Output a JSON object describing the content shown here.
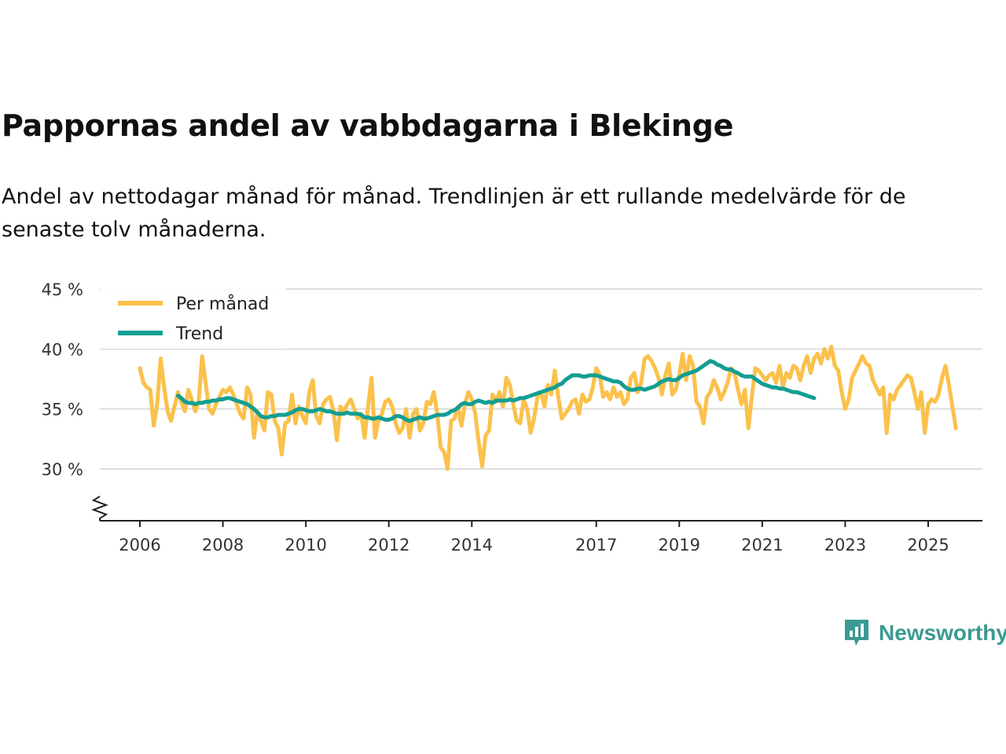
{
  "title": "Pappornas andel av vabbdagarna i Blekinge",
  "subtitle": "Andel av nettodagar månad för månad. Trendlinjen är ett rullande medelvärde för de senaste tolv månaderna.",
  "brand": {
    "name": "Newsworthy",
    "color": "#3a9a92"
  },
  "colors": {
    "monthly": "#fbc14b",
    "trend": "#139e93",
    "grid": "#dddddd",
    "axis": "#222222"
  },
  "chart_data": {
    "type": "line",
    "ylim": [
      25,
      45
    ],
    "y_ticks": [
      30,
      35,
      40,
      45
    ],
    "y_tick_labels": [
      "30 %",
      "35 %",
      "40 %",
      "45 %"
    ],
    "x_range": [
      2005.7,
      2026.3
    ],
    "x_ticks": [
      2006,
      2008,
      2010,
      2012,
      2014,
      2017,
      2019,
      2021,
      2023,
      2025
    ],
    "x_tick_labels": [
      "2006",
      "2008",
      "2010",
      "2012",
      "2014",
      "2017",
      "2019",
      "2021",
      "2023",
      "2025"
    ],
    "legend": {
      "position": "top-left",
      "entries": [
        "Per månad",
        "Trend"
      ]
    },
    "series": [
      {
        "name": "Per månad",
        "start": 2006.0,
        "step": 0.08333,
        "values": [
          38.4,
          37.2,
          36.8,
          36.6,
          33.6,
          35.4,
          39.2,
          36.8,
          34.8,
          34.0,
          35.2,
          36.4,
          35.6,
          34.8,
          36.6,
          35.8,
          34.8,
          35.6,
          39.4,
          37.2,
          35.0,
          34.6,
          35.4,
          36.0,
          36.6,
          36.4,
          36.8,
          36.2,
          35.4,
          34.6,
          34.2,
          36.8,
          36.2,
          32.6,
          34.8,
          34.0,
          33.2,
          36.4,
          36.2,
          34.0,
          33.4,
          31.2,
          33.8,
          34.0,
          36.2,
          33.8,
          35.2,
          34.4,
          33.8,
          36.4,
          37.4,
          34.4,
          33.8,
          35.4,
          35.8,
          36.0,
          34.8,
          32.4,
          35.2,
          34.8,
          35.4,
          35.8,
          35.0,
          34.2,
          34.6,
          32.6,
          35.2,
          37.6,
          32.6,
          34.0,
          34.6,
          35.6,
          35.8,
          35.2,
          33.8,
          33.0,
          33.4,
          35.0,
          32.6,
          34.6,
          35.0,
          33.2,
          33.8,
          35.6,
          35.4,
          36.4,
          34.6,
          31.8,
          31.4,
          30.0,
          34.0,
          34.2,
          35.2,
          33.6,
          35.4,
          36.4,
          35.8,
          34.6,
          32.2,
          30.2,
          32.8,
          33.2,
          36.2,
          35.6,
          36.4,
          35.2,
          37.6,
          37.0,
          35.4,
          34.0,
          33.8,
          35.8,
          35.0,
          33.0,
          34.2,
          36.0,
          36.4,
          35.2,
          37.0,
          36.2,
          38.2,
          36.0,
          34.2,
          34.6,
          35.0,
          35.6,
          35.8,
          34.6,
          36.2,
          35.6,
          35.8,
          36.8,
          38.4,
          37.8,
          36.0,
          36.4,
          35.8,
          36.8,
          36.0,
          36.4,
          35.4,
          35.8,
          37.6,
          38.0,
          36.4,
          37.2,
          39.2,
          39.4,
          39.0,
          38.4,
          37.6,
          36.2,
          37.8,
          38.8,
          36.2,
          36.6,
          37.8,
          39.6,
          37.4,
          39.4,
          38.6,
          35.6,
          35.2,
          33.8,
          36.0,
          36.4,
          37.4,
          36.8,
          35.8,
          36.4,
          37.2,
          38.4,
          38.0,
          36.6,
          35.4,
          36.6,
          33.4,
          36.0,
          38.4,
          38.2,
          37.8,
          37.4,
          37.8,
          38.0,
          37.2,
          38.6,
          36.8,
          38.0,
          37.6,
          38.6,
          38.4,
          37.4,
          38.6,
          39.4,
          38.0,
          39.2,
          39.6,
          38.8,
          40.0,
          39.2,
          40.2,
          38.6,
          38.2,
          36.4,
          35.0,
          35.8,
          37.6,
          38.2,
          38.8,
          39.4,
          38.8,
          38.6,
          37.4,
          36.8,
          36.2,
          36.8,
          33.0,
          36.2,
          35.8,
          36.6,
          37.0,
          37.4,
          37.8,
          37.6,
          36.4,
          35.0,
          36.4,
          33.0,
          35.4,
          35.8,
          35.6,
          36.2,
          37.6,
          38.6,
          37.0,
          35.2,
          33.4
        ]
      },
      {
        "name": "Trend",
        "start": 2006.917,
        "step": 0.08333,
        "values": [
          36.1,
          35.9,
          35.6,
          35.5,
          35.5,
          35.4,
          35.5,
          35.5,
          35.6,
          35.6,
          35.7,
          35.7,
          35.8,
          35.8,
          35.9,
          35.9,
          35.8,
          35.7,
          35.6,
          35.5,
          35.4,
          35.2,
          35.0,
          34.7,
          34.4,
          34.3,
          34.3,
          34.4,
          34.4,
          34.5,
          34.5,
          34.5,
          34.6,
          34.7,
          34.9,
          35.0,
          35.0,
          34.9,
          34.8,
          34.8,
          34.9,
          35.0,
          34.9,
          34.8,
          34.8,
          34.7,
          34.6,
          34.6,
          34.6,
          34.7,
          34.6,
          34.6,
          34.6,
          34.5,
          34.3,
          34.3,
          34.2,
          34.2,
          34.3,
          34.2,
          34.1,
          34.1,
          34.2,
          34.4,
          34.4,
          34.3,
          34.1,
          34.0,
          34.1,
          34.2,
          34.3,
          34.2,
          34.2,
          34.3,
          34.4,
          34.5,
          34.5,
          34.5,
          34.6,
          34.8,
          34.9,
          35.1,
          35.4,
          35.5,
          35.4,
          35.4,
          35.6,
          35.7,
          35.6,
          35.5,
          35.6,
          35.5,
          35.7,
          35.7,
          35.7,
          35.7,
          35.8,
          35.7,
          35.8,
          35.9,
          35.9,
          36.0,
          36.1,
          36.2,
          36.3,
          36.4,
          36.5,
          36.6,
          36.7,
          36.8,
          37.0,
          37.1,
          37.4,
          37.6,
          37.8,
          37.8,
          37.8,
          37.7,
          37.7,
          37.8,
          37.8,
          37.8,
          37.7,
          37.6,
          37.5,
          37.4,
          37.3,
          37.3,
          37.2,
          36.9,
          36.7,
          36.6,
          36.6,
          36.7,
          36.7,
          36.6,
          36.7,
          36.8,
          36.9,
          37.1,
          37.3,
          37.4,
          37.5,
          37.4,
          37.4,
          37.6,
          37.8,
          37.9,
          38.0,
          38.1,
          38.2,
          38.4,
          38.6,
          38.8,
          39.0,
          38.9,
          38.7,
          38.6,
          38.4,
          38.3,
          38.3,
          38.1,
          38.0,
          37.8,
          37.7,
          37.7,
          37.7,
          37.5,
          37.3,
          37.1,
          37.0,
          36.9,
          36.8,
          36.8,
          36.7,
          36.7,
          36.6,
          36.5,
          36.4,
          36.4,
          36.3,
          36.2,
          36.1,
          36.0,
          35.9
        ]
      }
    ]
  }
}
